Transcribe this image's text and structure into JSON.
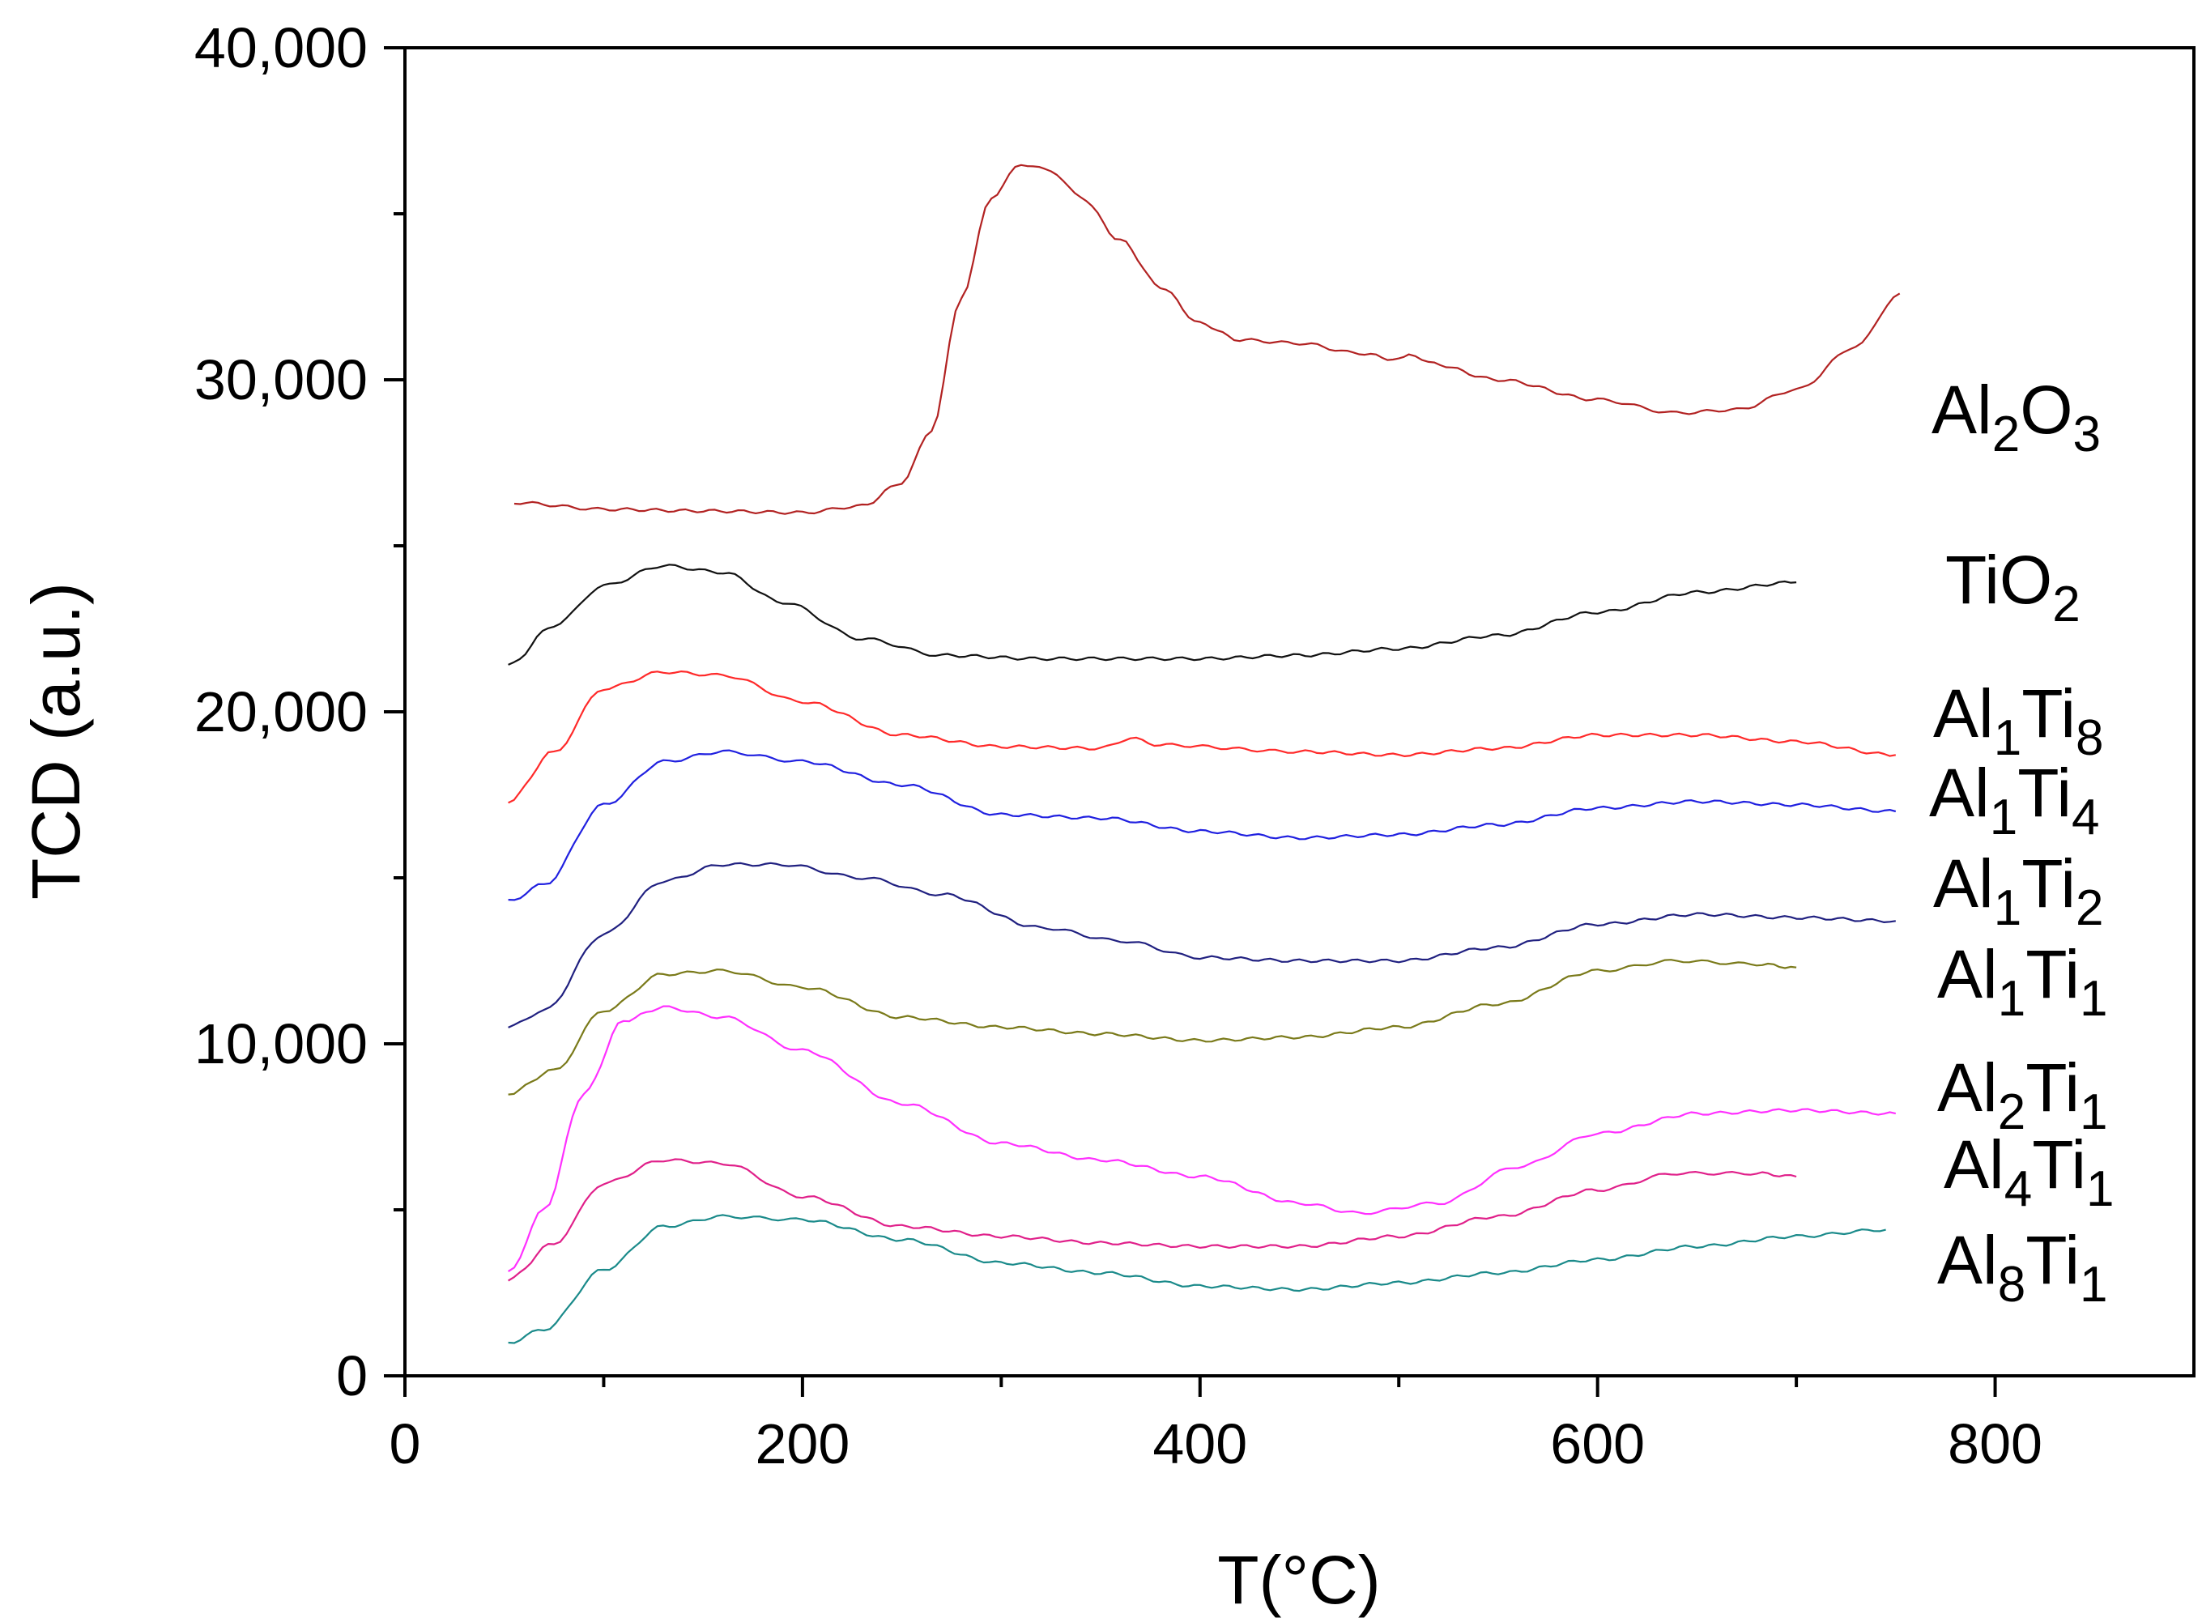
{
  "chart_data": {
    "type": "line",
    "title": "",
    "xlabel": "T(°C)",
    "ylabel": "TCD (a.u.)",
    "xlim": [
      0,
      900
    ],
    "ylim": [
      0,
      40000
    ],
    "x_ticks": [
      0,
      200,
      400,
      600,
      800
    ],
    "x_tick_labels": [
      "0",
      "200",
      "400",
      "600",
      "800"
    ],
    "y_ticks": [
      0,
      10000,
      20000,
      30000,
      40000
    ],
    "y_tick_labels": [
      "0",
      "10,000",
      "20,000",
      "30,000",
      "40,000"
    ],
    "legend": "inline labels at right of each curve",
    "series": [
      {
        "name": "Al2O3",
        "label_main": [
          "Al",
          "O"
        ],
        "label_sub": [
          "2",
          "3"
        ],
        "color": "#b22222",
        "points": [
          [
            55,
            26300
          ],
          [
            100,
            26100
          ],
          [
            150,
            26050
          ],
          [
            200,
            26000
          ],
          [
            230,
            26200
          ],
          [
            250,
            26900
          ],
          [
            265,
            28500
          ],
          [
            280,
            32500
          ],
          [
            295,
            35500
          ],
          [
            310,
            36500
          ],
          [
            325,
            36300
          ],
          [
            340,
            35500
          ],
          [
            360,
            34200
          ],
          [
            380,
            32800
          ],
          [
            400,
            31700
          ],
          [
            420,
            31200
          ],
          [
            450,
            31100
          ],
          [
            480,
            30800
          ],
          [
            500,
            30600
          ],
          [
            505,
            30800
          ],
          [
            515,
            30500
          ],
          [
            550,
            30000
          ],
          [
            600,
            29400
          ],
          [
            640,
            29000
          ],
          [
            670,
            29100
          ],
          [
            700,
            29700
          ],
          [
            730,
            31000
          ],
          [
            752,
            32600
          ]
        ]
      },
      {
        "name": "TiO2",
        "label_main": [
          "TiO"
        ],
        "label_sub": [
          "2"
        ],
        "color": "#111111",
        "points": [
          [
            52,
            21400
          ],
          [
            75,
            22600
          ],
          [
            100,
            23800
          ],
          [
            130,
            24400
          ],
          [
            160,
            24200
          ],
          [
            190,
            23300
          ],
          [
            230,
            22200
          ],
          [
            270,
            21700
          ],
          [
            320,
            21600
          ],
          [
            400,
            21600
          ],
          [
            450,
            21700
          ],
          [
            500,
            21900
          ],
          [
            550,
            22300
          ],
          [
            600,
            23000
          ],
          [
            650,
            23600
          ],
          [
            700,
            23900
          ]
        ]
      },
      {
        "name": "Al1Ti8",
        "label_main": [
          "Al",
          "Ti"
        ],
        "label_sub": [
          "1",
          "8"
        ],
        "color": "#ff2a2a",
        "points": [
          [
            52,
            17300
          ],
          [
            75,
            18800
          ],
          [
            100,
            20700
          ],
          [
            130,
            21200
          ],
          [
            160,
            21100
          ],
          [
            200,
            20300
          ],
          [
            250,
            19300
          ],
          [
            300,
            18950
          ],
          [
            350,
            18900
          ],
          [
            365,
            19200
          ],
          [
            380,
            19000
          ],
          [
            450,
            18800
          ],
          [
            500,
            18700
          ],
          [
            550,
            18900
          ],
          [
            600,
            19300
          ],
          [
            650,
            19300
          ],
          [
            700,
            19100
          ],
          [
            750,
            18700
          ]
        ]
      },
      {
        "name": "Al1Ti4",
        "label_main": [
          "Al",
          "Ti"
        ],
        "label_sub": [
          "1",
          "4"
        ],
        "color": "#2020e0",
        "points": [
          [
            52,
            14300
          ],
          [
            70,
            14800
          ],
          [
            100,
            17200
          ],
          [
            130,
            18500
          ],
          [
            160,
            18800
          ],
          [
            200,
            18500
          ],
          [
            250,
            17800
          ],
          [
            300,
            16900
          ],
          [
            350,
            16800
          ],
          [
            400,
            16400
          ],
          [
            450,
            16200
          ],
          [
            500,
            16300
          ],
          [
            550,
            16600
          ],
          [
            600,
            17100
          ],
          [
            650,
            17300
          ],
          [
            700,
            17200
          ],
          [
            750,
            17000
          ]
        ]
      },
      {
        "name": "Al1Ti2",
        "label_main": [
          "Al",
          "Ti"
        ],
        "label_sub": [
          "1",
          "2"
        ],
        "color": "#202080",
        "points": [
          [
            52,
            10500
          ],
          [
            70,
            11000
          ],
          [
            100,
            13300
          ],
          [
            130,
            14900
          ],
          [
            160,
            15400
          ],
          [
            190,
            15400
          ],
          [
            230,
            15000
          ],
          [
            270,
            14500
          ],
          [
            320,
            13500
          ],
          [
            360,
            13100
          ],
          [
            400,
            12600
          ],
          [
            450,
            12500
          ],
          [
            500,
            12500
          ],
          [
            550,
            12900
          ],
          [
            600,
            13600
          ],
          [
            650,
            13900
          ],
          [
            700,
            13800
          ],
          [
            750,
            13700
          ]
        ]
      },
      {
        "name": "Al1Ti1",
        "label_main": [
          "Al",
          "Ti"
        ],
        "label_sub": [
          "1",
          "1"
        ],
        "color": "#7a7a1a",
        "points": [
          [
            52,
            8500
          ],
          [
            75,
            9200
          ],
          [
            100,
            11000
          ],
          [
            130,
            12100
          ],
          [
            160,
            12200
          ],
          [
            200,
            11700
          ],
          [
            250,
            10800
          ],
          [
            300,
            10500
          ],
          [
            350,
            10300
          ],
          [
            400,
            10100
          ],
          [
            450,
            10200
          ],
          [
            500,
            10500
          ],
          [
            550,
            11200
          ],
          [
            600,
            12200
          ],
          [
            640,
            12500
          ],
          [
            680,
            12400
          ],
          [
            700,
            12300
          ]
        ]
      },
      {
        "name": "Al2Ti1",
        "label_main": [
          "Al",
          "Ti"
        ],
        "label_sub": [
          "2",
          "1"
        ],
        "color": "#ff30ff",
        "points": [
          [
            52,
            3100
          ],
          [
            70,
            5000
          ],
          [
            90,
            8500
          ],
          [
            110,
            10700
          ],
          [
            130,
            11100
          ],
          [
            160,
            10800
          ],
          [
            200,
            9800
          ],
          [
            250,
            8200
          ],
          [
            300,
            7000
          ],
          [
            350,
            6500
          ],
          [
            400,
            6000
          ],
          [
            450,
            5200
          ],
          [
            480,
            4900
          ],
          [
            520,
            5200
          ],
          [
            560,
            6300
          ],
          [
            600,
            7300
          ],
          [
            650,
            7900
          ],
          [
            700,
            8000
          ],
          [
            750,
            7900
          ]
        ]
      },
      {
        "name": "Al4Ti1",
        "label_main": [
          "Al",
          "Ti"
        ],
        "label_sub": [
          "4",
          "1"
        ],
        "color": "#e0208a",
        "points": [
          [
            52,
            2900
          ],
          [
            75,
            4000
          ],
          [
            100,
            5800
          ],
          [
            130,
            6500
          ],
          [
            160,
            6400
          ],
          [
            200,
            5400
          ],
          [
            250,
            4500
          ],
          [
            300,
            4200
          ],
          [
            350,
            4000
          ],
          [
            400,
            3900
          ],
          [
            450,
            3900
          ],
          [
            500,
            4200
          ],
          [
            550,
            4800
          ],
          [
            600,
            5600
          ],
          [
            640,
            6100
          ],
          [
            680,
            6100
          ],
          [
            700,
            6000
          ]
        ]
      },
      {
        "name": "Al8Ti1",
        "label_main": [
          "Al",
          "Ti"
        ],
        "label_sub": [
          "8",
          "1"
        ],
        "color": "#1a8a8a",
        "points": [
          [
            52,
            1000
          ],
          [
            70,
            1400
          ],
          [
            100,
            3200
          ],
          [
            130,
            4500
          ],
          [
            160,
            4800
          ],
          [
            200,
            4700
          ],
          [
            250,
            4100
          ],
          [
            300,
            3400
          ],
          [
            350,
            3100
          ],
          [
            400,
            2700
          ],
          [
            450,
            2600
          ],
          [
            500,
            2800
          ],
          [
            550,
            3100
          ],
          [
            600,
            3500
          ],
          [
            650,
            3900
          ],
          [
            700,
            4200
          ],
          [
            745,
            4400
          ]
        ]
      }
    ]
  }
}
